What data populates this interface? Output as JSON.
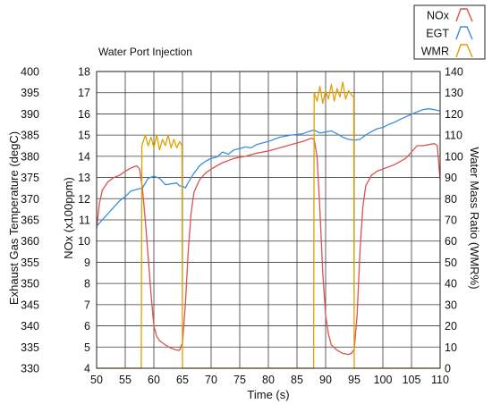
{
  "chart_data": {
    "type": "line",
    "title": "Water Port Injection",
    "xlabel": "Time (s)",
    "ylabel_left": "Exhaust Gas Temperature (degC)",
    "ylabel_nox": "NOx (x100ppm)",
    "ylabel_right": "Water Mass Ratio (WMR%)",
    "xlim": [
      50,
      110
    ],
    "xticks": [
      50,
      55,
      60,
      65,
      70,
      75,
      80,
      85,
      90,
      95,
      100,
      105,
      110
    ],
    "ylim_left": [
      330,
      400
    ],
    "yticks_left": [
      330,
      335,
      340,
      345,
      350,
      355,
      360,
      365,
      370,
      375,
      380,
      385,
      390,
      395,
      400
    ],
    "ylim_nox": [
      4,
      18
    ],
    "yticks_nox": [
      4,
      5,
      6,
      7,
      8,
      9,
      10,
      11,
      12,
      13,
      14,
      15,
      16,
      17,
      18
    ],
    "ylim_right": [
      0,
      140
    ],
    "yticks_right": [
      0,
      10,
      20,
      30,
      40,
      50,
      60,
      70,
      80,
      90,
      100,
      110,
      120,
      130,
      140
    ],
    "grid": true,
    "legend_position": "top-right",
    "series": [
      {
        "name": "NOx",
        "axis": "nox",
        "color": "#d9534f",
        "x": [
          50,
          50.5,
          51,
          52,
          53,
          54,
          55,
          56,
          57,
          57.5,
          58,
          58.5,
          59,
          59.5,
          60,
          60.5,
          61,
          62,
          63,
          64,
          64.5,
          65,
          65.5,
          66,
          66.5,
          67,
          68,
          69,
          70,
          72,
          74,
          76,
          78,
          80,
          82,
          84,
          86,
          87,
          87.5,
          88,
          88.5,
          89,
          89.5,
          90,
          90.5,
          91,
          92,
          93,
          94,
          94.5,
          95,
          95.5,
          96,
          96.5,
          97,
          98,
          99,
          100,
          102,
          104,
          105,
          106,
          107,
          108,
          109,
          109.5,
          110
        ],
        "y": [
          10.6,
          11.8,
          12.4,
          12.8,
          13.0,
          13.1,
          13.3,
          13.45,
          13.55,
          13.4,
          12.5,
          11.0,
          9.3,
          7.5,
          6.0,
          5.5,
          5.3,
          5.1,
          4.95,
          4.85,
          4.85,
          5.2,
          7.0,
          9.5,
          11.3,
          12.3,
          12.9,
          13.2,
          13.4,
          13.7,
          13.9,
          14.0,
          14.15,
          14.25,
          14.4,
          14.55,
          14.7,
          14.8,
          14.85,
          14.8,
          14.0,
          11.5,
          8.5,
          6.5,
          5.6,
          5.1,
          4.85,
          4.7,
          4.65,
          4.7,
          4.9,
          6.5,
          9.5,
          11.6,
          12.6,
          13.1,
          13.3,
          13.4,
          13.6,
          13.9,
          14.2,
          14.5,
          14.5,
          14.55,
          14.6,
          14.5,
          12.9
        ]
      },
      {
        "name": "EGT",
        "axis": "left",
        "color": "#3a8ee0",
        "x": [
          50,
          51,
          52,
          53,
          54,
          55,
          56,
          57,
          58,
          59,
          60,
          61,
          62,
          63,
          64,
          64.5,
          65,
          65.5,
          66,
          67,
          68,
          69,
          70,
          71,
          72,
          73,
          74,
          75,
          76,
          77,
          78,
          80,
          82,
          84,
          86,
          87,
          88,
          89,
          90,
          91,
          92,
          93,
          94,
          95,
          96,
          97,
          98,
          99,
          100,
          101,
          102,
          103,
          104,
          105,
          106,
          107,
          108,
          109,
          110
        ],
        "y": [
          363.5,
          365.0,
          366.5,
          368.0,
          369.5,
          370.5,
          371.8,
          372.2,
          372.5,
          374.8,
          375.3,
          374.8,
          373.3,
          373.5,
          373.7,
          373.0,
          373.0,
          372.5,
          373.8,
          376.0,
          377.8,
          378.8,
          379.5,
          379.8,
          381.0,
          380.5,
          381.5,
          381.8,
          382.2,
          382.0,
          382.8,
          383.5,
          384.5,
          385.0,
          385.3,
          385.8,
          386.2,
          385.5,
          385.7,
          386.0,
          385.3,
          384.5,
          384.0,
          383.8,
          384.0,
          385.0,
          385.8,
          386.5,
          386.8,
          387.5,
          388.0,
          388.7,
          389.3,
          389.9,
          390.5,
          391.0,
          391.2,
          391.0,
          390.7
        ]
      },
      {
        "name": "WMR",
        "axis": "right",
        "color": "#e2a000",
        "x": [
          50,
          57.8,
          57.9,
          58.5,
          59,
          59.5,
          60,
          60.5,
          61,
          61.5,
          62,
          62.5,
          63,
          63.5,
          64,
          64.5,
          64.9,
          65.0,
          87.9,
          88.0,
          88.5,
          89,
          89.5,
          90,
          90.5,
          91,
          91.5,
          92,
          92.5,
          93,
          93.5,
          94,
          94.5,
          94.9,
          95.0,
          110
        ],
        "y": [
          0,
          0,
          105,
          110,
          105,
          109,
          104,
          110,
          103,
          108,
          105,
          110,
          104,
          108,
          104,
          107,
          105,
          0,
          0,
          130,
          126,
          133,
          125,
          131,
          127,
          134,
          126,
          132,
          128,
          135,
          127,
          131,
          129,
          128,
          0,
          0
        ]
      }
    ]
  }
}
